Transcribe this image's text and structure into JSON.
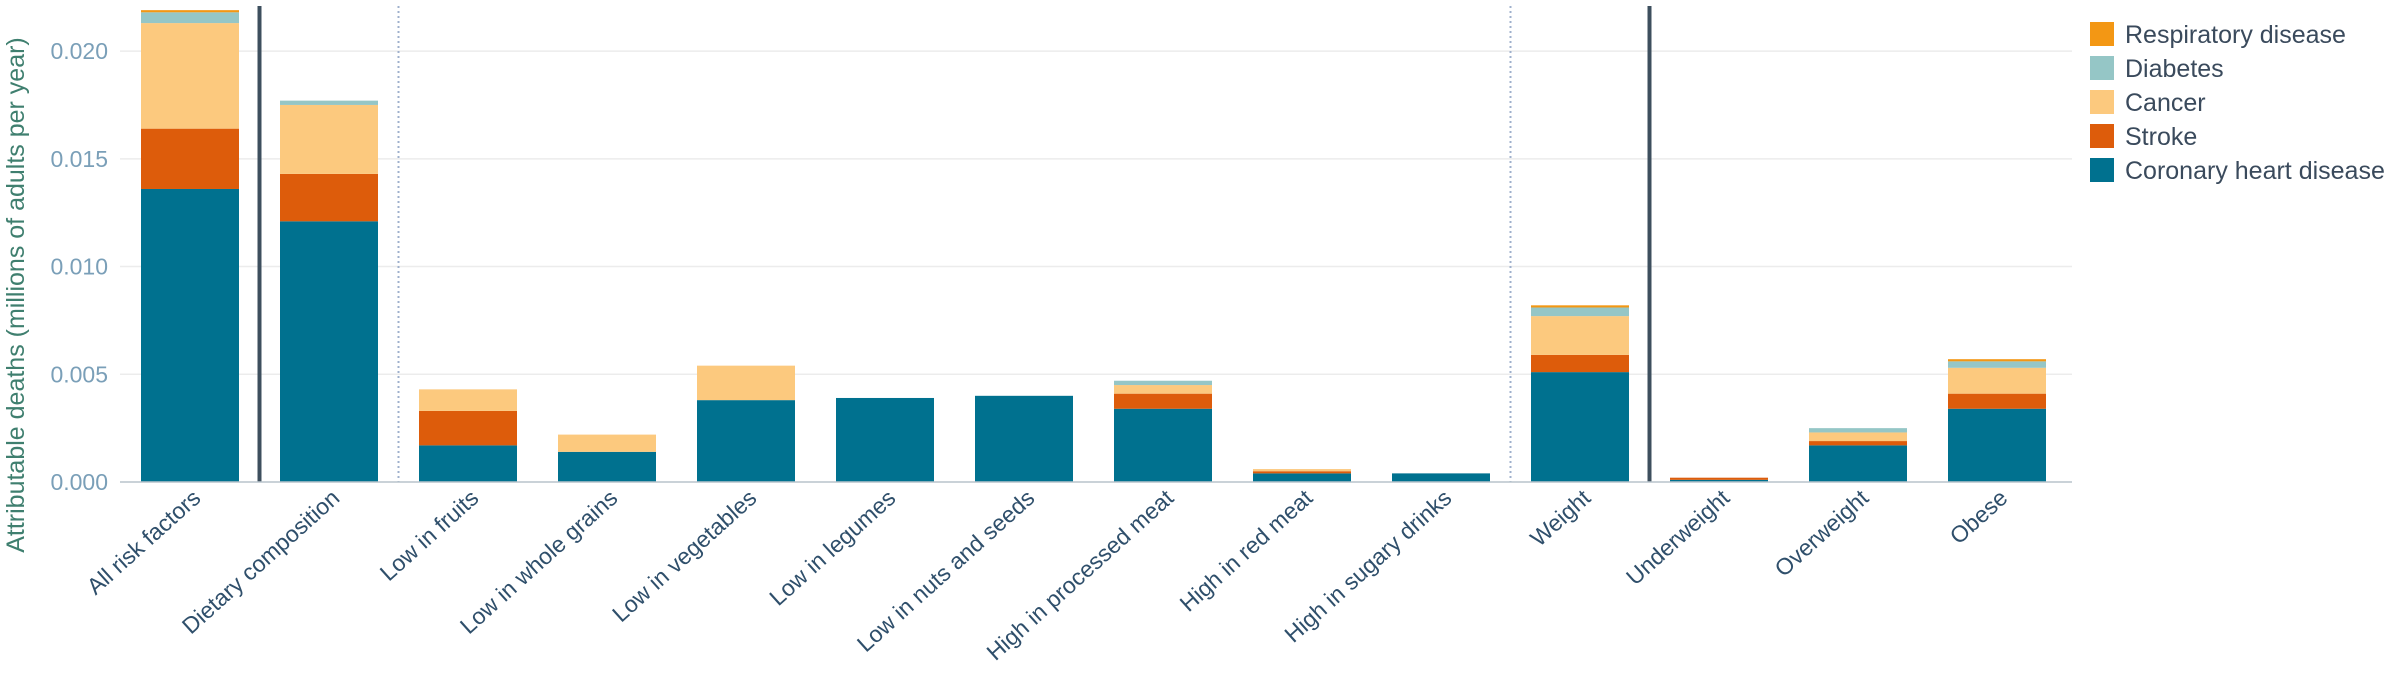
{
  "chart_data": {
    "type": "bar",
    "stacked": true,
    "ylabel": "Attributable deaths (millions of adults per year)",
    "ylim": [
      0,
      0.022
    ],
    "yticks": [
      "0.000",
      "0.005",
      "0.010",
      "0.015",
      "0.020"
    ],
    "grid": true,
    "legend_position": "top-right",
    "categories": [
      "All risk factors",
      "Dietary composition",
      "Low in fruits",
      "Low in whole grains",
      "Low in vegetables",
      "Low in legumes",
      "Low in nuts and seeds",
      "High in processed meat",
      "High in red meat",
      "High in sugary drinks",
      "Weight",
      "Underweight",
      "Overweight",
      "Obese"
    ],
    "series": [
      {
        "name": "Coronary heart disease",
        "color": "#00718f",
        "values": [
          0.0136,
          0.0121,
          0.0017,
          0.0014,
          0.0038,
          0.0039,
          0.004,
          0.0034,
          0.0004,
          0.0004,
          0.0051,
          0.0001,
          0.0017,
          0.0034
        ]
      },
      {
        "name": "Stroke",
        "color": "#dd5c0b",
        "values": [
          0.0028,
          0.0022,
          0.0016,
          0.0,
          0.0,
          0.0,
          0.0,
          0.0007,
          0.0001,
          0.0,
          0.0008,
          0.0001,
          0.0002,
          0.0007
        ]
      },
      {
        "name": "Cancer",
        "color": "#fcc97e",
        "values": [
          0.0049,
          0.0032,
          0.001,
          0.0008,
          0.0016,
          0.0,
          0.0,
          0.0004,
          0.0001,
          0.0,
          0.0018,
          0.0,
          0.0004,
          0.0012
        ]
      },
      {
        "name": "Diabetes",
        "color": "#95c6c6",
        "values": [
          0.0005,
          0.0002,
          0.0,
          0.0,
          0.0,
          0.0,
          0.0,
          0.0002,
          0.0,
          0.0,
          0.0004,
          0.0,
          0.0002,
          0.0003
        ]
      },
      {
        "name": "Respiratory disease",
        "color": "#f39714",
        "values": [
          0.0001,
          0.0,
          0.0,
          0.0,
          0.0,
          0.0,
          0.0,
          0.0,
          0.0,
          0.0,
          0.0001,
          0.0,
          0.0,
          0.0001
        ]
      }
    ],
    "group_separators_after": [
      "All risk factors",
      "Weight"
    ],
    "subgroup_separators_after": [
      "Dietary composition",
      "High in sugary drinks"
    ],
    "legend_order": [
      "Respiratory disease",
      "Diabetes",
      "Cancer",
      "Stroke",
      "Coronary heart disease"
    ]
  }
}
